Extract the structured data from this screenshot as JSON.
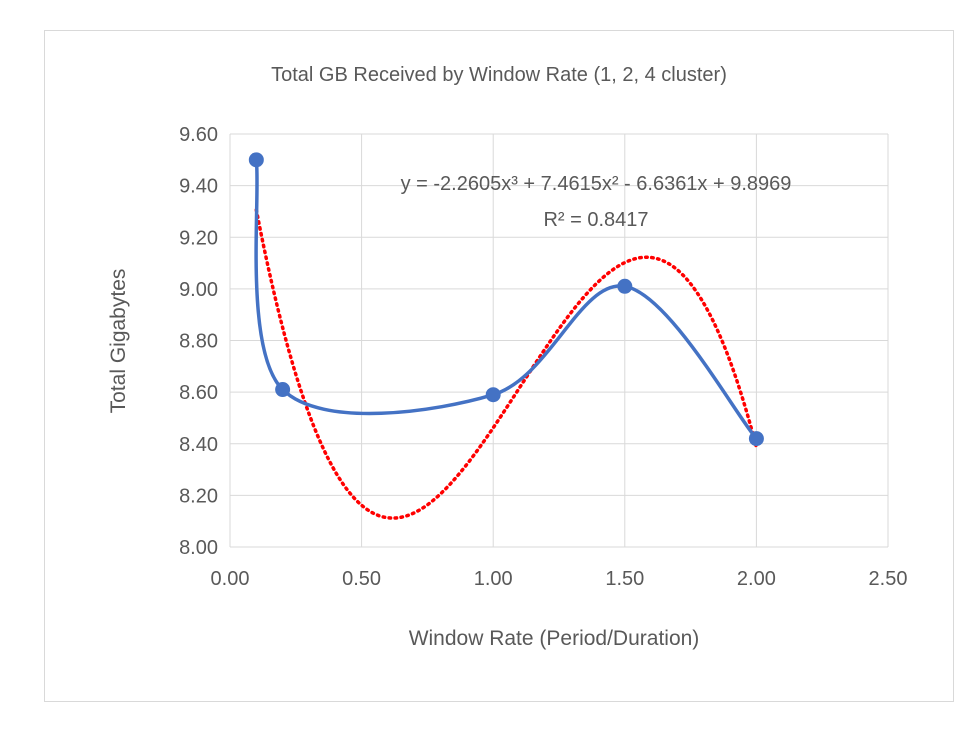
{
  "chart_data": {
    "type": "scatter",
    "title": "Total GB Received by Window Rate (1, 2, 4 cluster)",
    "xlabel": "Window Rate (Period/Duration)",
    "ylabel": "Total Gigabytes",
    "xlim": [
      0,
      2.5
    ],
    "ylim": [
      8.0,
      9.6
    ],
    "x_ticks": [
      "0.00",
      "0.50",
      "1.00",
      "1.50",
      "2.00",
      "2.50"
    ],
    "y_ticks": [
      "8.00",
      "8.20",
      "8.40",
      "8.60",
      "8.80",
      "9.00",
      "9.20",
      "9.40",
      "9.60"
    ],
    "grid": true,
    "series": [
      {
        "color": "#4472c4",
        "style": "smoothed line with markers",
        "points": [
          {
            "x": 0.1,
            "y": 9.5
          },
          {
            "x": 0.2,
            "y": 8.61
          },
          {
            "x": 1.0,
            "y": 8.59
          },
          {
            "x": 1.5,
            "y": 9.01
          },
          {
            "x": 2.0,
            "y": 8.42
          }
        ]
      }
    ],
    "trendline": {
      "type": "polynomial",
      "order": 3,
      "color": "#ff0000",
      "style": "dotted",
      "coefficients": [
        -2.2605,
        7.4615,
        -6.6361,
        9.8969
      ],
      "x_range": [
        0.1,
        2.0
      ],
      "equation_text": "y = -2.2605x³ + 7.4615x² - 6.6361x + 9.8969",
      "r2_text": "R² = 0.8417"
    }
  }
}
